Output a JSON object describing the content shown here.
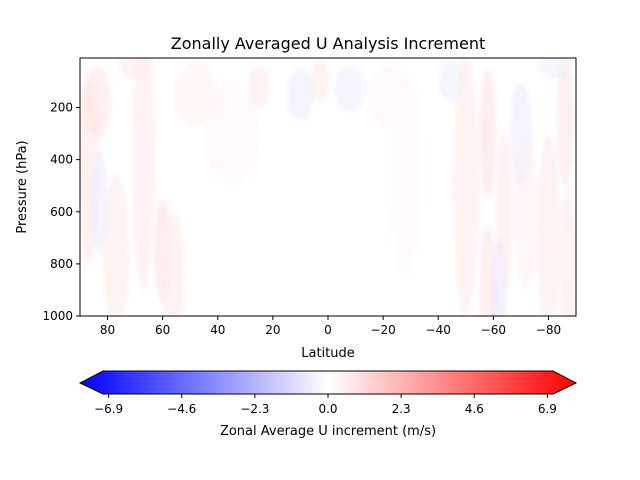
{
  "chart_data": {
    "type": "heatmap",
    "title": "Zonally Averaged U Analysis Increment",
    "xlabel": "Latitude",
    "ylabel": "Pressure (hPa)",
    "x_ticks": [
      80,
      60,
      40,
      20,
      0,
      -20,
      -40,
      -60,
      -80
    ],
    "x_tick_labels": [
      "80",
      "60",
      "40",
      "20",
      "0",
      "−20",
      "−40",
      "−60",
      "−80"
    ],
    "xlim": [
      90,
      -90
    ],
    "y_ticks": [
      200,
      400,
      600,
      800,
      1000
    ],
    "y_tick_labels": [
      "200",
      "400",
      "600",
      "800",
      "1000"
    ],
    "ylim": [
      1000,
      10
    ],
    "y_inverted": true,
    "colormap": "bwr",
    "color_min_hex": "#0000ff",
    "color_mid_hex": "#ffffff",
    "color_max_hex": "#ff0000",
    "colorbar": {
      "label": "Zonal Average U increment (m/s)",
      "range": [
        -7.8,
        7.8
      ],
      "extend": "both",
      "ticks": [
        -6.9,
        -4.6,
        -2.3,
        0.0,
        2.3,
        4.6,
        6.9
      ],
      "tick_labels": [
        "−6.9",
        "−4.6",
        "−2.3",
        "0.0",
        "2.3",
        "4.6",
        "6.9"
      ]
    },
    "features": [
      {
        "lat": 84,
        "p": 180,
        "lat_width": 5,
        "p_width": 140,
        "value": 0.9
      },
      {
        "lat": 87,
        "p": 450,
        "lat_width": 4,
        "p_width": 350,
        "value": 0.8
      },
      {
        "lat": 83,
        "p": 560,
        "lat_width": 3,
        "p_width": 200,
        "value": -0.6
      },
      {
        "lat": 77,
        "p": 750,
        "lat_width": 5,
        "p_width": 300,
        "value": 0.6
      },
      {
        "lat": 67,
        "p": 400,
        "lat_width": 4,
        "p_width": 500,
        "value": 0.7
      },
      {
        "lat": 60,
        "p": 750,
        "lat_width": 3,
        "p_width": 200,
        "value": 1.1
      },
      {
        "lat": 56,
        "p": 850,
        "lat_width": 4,
        "p_width": 250,
        "value": 0.6
      },
      {
        "lat": 48,
        "p": 150,
        "lat_width": 8,
        "p_width": 120,
        "value": 0.5
      },
      {
        "lat": 35,
        "p": 300,
        "lat_width": 10,
        "p_width": 200,
        "value": 0.35
      },
      {
        "lat": 25,
        "p": 120,
        "lat_width": 4,
        "p_width": 80,
        "value": 0.7
      },
      {
        "lat": 10,
        "p": 150,
        "lat_width": 5,
        "p_width": 100,
        "value": -0.6
      },
      {
        "lat": 3,
        "p": 100,
        "lat_width": 4,
        "p_width": 80,
        "value": 0.6
      },
      {
        "lat": -8,
        "p": 130,
        "lat_width": 6,
        "p_width": 90,
        "value": -0.5
      },
      {
        "lat": -22,
        "p": 160,
        "lat_width": 8,
        "p_width": 120,
        "value": 0.35
      },
      {
        "lat": -28,
        "p": 450,
        "lat_width": 6,
        "p_width": 400,
        "value": 0.25
      },
      {
        "lat": -45,
        "p": 100,
        "lat_width": 5,
        "p_width": 80,
        "value": -0.5
      },
      {
        "lat": -50,
        "p": 500,
        "lat_width": 5,
        "p_width": 500,
        "value": 0.6
      },
      {
        "lat": -58,
        "p": 300,
        "lat_width": 3,
        "p_width": 250,
        "value": 1.0
      },
      {
        "lat": -58,
        "p": 900,
        "lat_width": 3,
        "p_width": 250,
        "value": 0.9
      },
      {
        "lat": -62,
        "p": 900,
        "lat_width": 3,
        "p_width": 200,
        "value": -0.7
      },
      {
        "lat": -64,
        "p": 600,
        "lat_width": 3,
        "p_width": 300,
        "value": 0.7
      },
      {
        "lat": -70,
        "p": 300,
        "lat_width": 4,
        "p_width": 200,
        "value": -0.6
      },
      {
        "lat": -72,
        "p": 600,
        "lat_width": 4,
        "p_width": 300,
        "value": 0.5
      },
      {
        "lat": -80,
        "p": 700,
        "lat_width": 4,
        "p_width": 400,
        "value": 0.7
      },
      {
        "lat": -86,
        "p": 250,
        "lat_width": 3,
        "p_width": 250,
        "value": 0.9
      },
      {
        "lat": -87,
        "p": 800,
        "lat_width": 3,
        "p_width": 300,
        "value": 0.7
      },
      {
        "lat": -82,
        "p": 30,
        "lat_width": 6,
        "p_width": 60,
        "value": -0.5
      },
      {
        "lat": 70,
        "p": 30,
        "lat_width": 6,
        "p_width": 60,
        "value": 0.6
      }
    ]
  }
}
